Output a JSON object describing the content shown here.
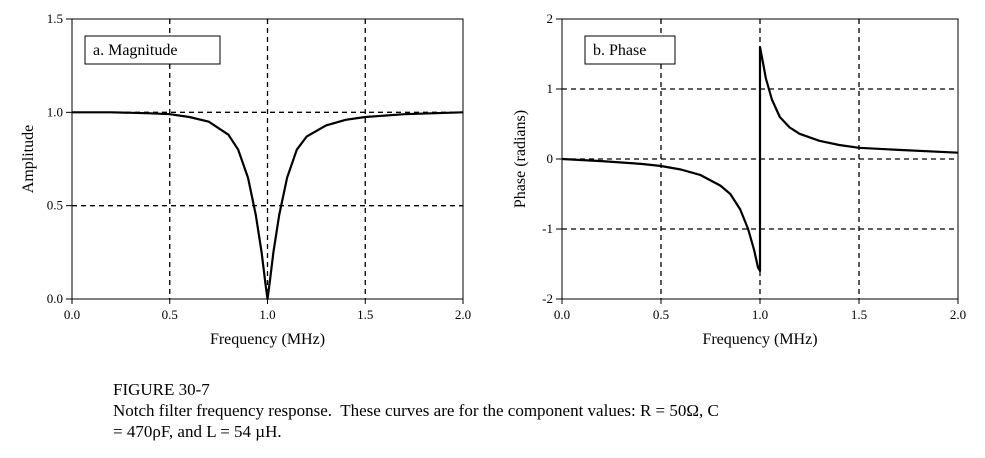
{
  "figure": {
    "number": "FIGURE 30-7",
    "caption_line1": "Notch filter frequency response.  These curves are for the component values: R = 50Ω, C",
    "caption_line2": "= 470ρF, and L = 54 µH."
  },
  "chart_data": [
    {
      "type": "line",
      "panel_label": "a.  Magnitude",
      "xlabel": "Frequency (MHz)",
      "ylabel": "Amplitude",
      "xlim": [
        0.0,
        2.0
      ],
      "ylim": [
        0.0,
        1.5
      ],
      "xticks": [
        "0.0",
        "0.5",
        "1.0",
        "1.5",
        "2.0"
      ],
      "yticks": [
        "0.0",
        "0.5",
        "1.0",
        "1.5"
      ],
      "grid": "dashed",
      "series": [
        {
          "x": [
            0.0,
            0.2,
            0.4,
            0.5,
            0.6,
            0.7,
            0.8,
            0.85,
            0.9,
            0.94,
            0.97,
            0.99,
            1.0,
            1.01,
            1.03,
            1.06,
            1.1,
            1.15,
            1.2,
            1.3,
            1.4,
            1.5,
            1.7,
            2.0
          ],
          "y": [
            1.0,
            1.0,
            0.995,
            0.99,
            0.975,
            0.95,
            0.88,
            0.8,
            0.65,
            0.45,
            0.25,
            0.08,
            0.0,
            0.08,
            0.25,
            0.45,
            0.65,
            0.8,
            0.87,
            0.93,
            0.96,
            0.975,
            0.99,
            1.0
          ]
        }
      ]
    },
    {
      "type": "line",
      "panel_label": "b.  Phase",
      "xlabel": "Frequency (MHz)",
      "ylabel": "Phase (radians)",
      "xlim": [
        0.0,
        2.0
      ],
      "ylim": [
        -2,
        2
      ],
      "xticks": [
        "0.0",
        "0.5",
        "1.0",
        "1.5",
        "2.0"
      ],
      "yticks": [
        "-2",
        "-1",
        "0",
        "1",
        "2"
      ],
      "grid": "dashed",
      "series": [
        {
          "x": [
            0.0,
            0.2,
            0.4,
            0.5,
            0.6,
            0.7,
            0.8,
            0.85,
            0.9,
            0.94,
            0.97,
            0.99,
            1.0,
            1.0,
            1.01,
            1.03,
            1.06,
            1.1,
            1.15,
            1.2,
            1.3,
            1.4,
            1.5,
            1.7,
            2.0
          ],
          "y": [
            0.0,
            -0.03,
            -0.07,
            -0.1,
            -0.15,
            -0.23,
            -0.38,
            -0.5,
            -0.72,
            -1.0,
            -1.3,
            -1.55,
            -1.6,
            1.6,
            1.45,
            1.15,
            0.85,
            0.6,
            0.45,
            0.36,
            0.26,
            0.2,
            0.16,
            0.13,
            0.09
          ]
        }
      ]
    }
  ]
}
